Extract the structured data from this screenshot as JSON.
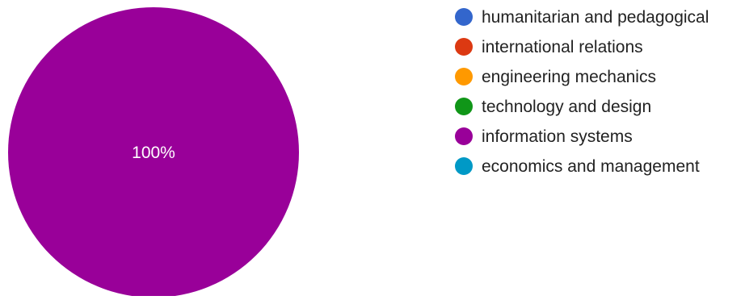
{
  "chart_data": {
    "type": "pie",
    "categories": [
      "humanitarian and pedagogical",
      "international relations",
      "engineering mechanics",
      "technology and design",
      "information systems",
      "economics and management"
    ],
    "values": [
      0,
      0,
      0,
      0,
      100,
      0
    ],
    "slice_labels": [
      "",
      "",
      "",
      "",
      "100%",
      ""
    ],
    "colors": [
      "#3366cc",
      "#dc3912",
      "#ff9900",
      "#109618",
      "#990099",
      "#0099c6"
    ],
    "legend_position": "right"
  }
}
